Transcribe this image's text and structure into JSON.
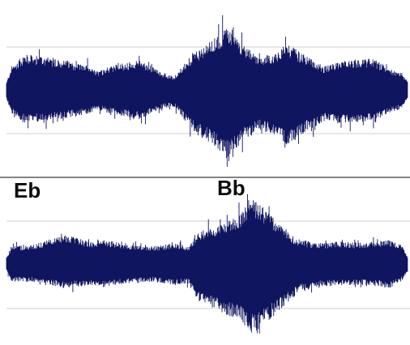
{
  "colors": {
    "waveform": "#101560",
    "background": "#ffffff",
    "gridline": "#cfcfcf",
    "divider": "#3a3a3a"
  },
  "tracks": [
    {
      "marker_label": ""
    },
    {
      "marker_label": ""
    }
  ],
  "markers": {
    "left_label": "Eb",
    "right_label": "Bb"
  }
}
